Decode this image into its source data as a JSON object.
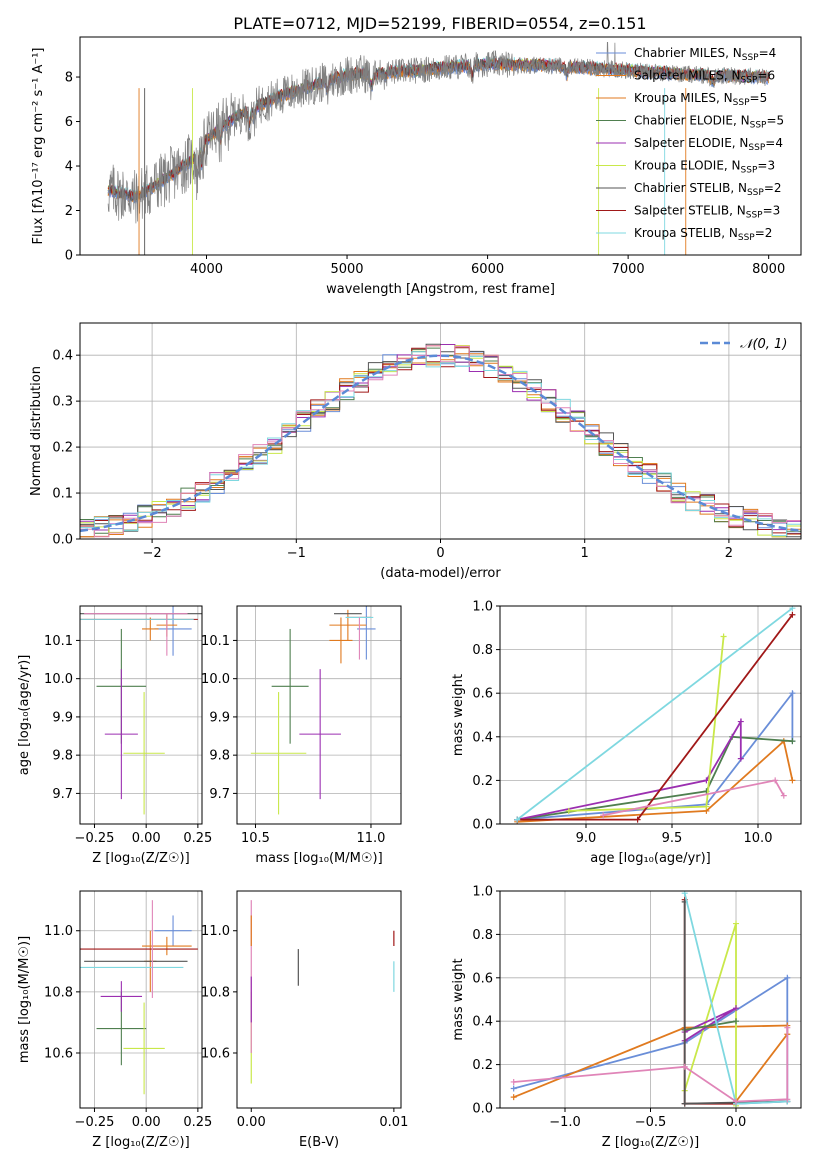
{
  "figure": {
    "title": "PLATE=0712, MJD=52199, FIBERID=0554, z=0.151"
  },
  "colors": {
    "Chabrier MILES": "#6a8ed8",
    "Salpeter MILES": "#e07a1f",
    "Kroupa MILES": "#e07a1f",
    "Chabrier ELODIE": "#4f7f4f",
    "Salpeter ELODIE": "#9b2fb0",
    "Kroupa ELODIE": "#c9e84a",
    "Chabrier STELIB": "#555555",
    "Salpeter STELIB": "#a01818",
    "Kroupa STELIB": "#7fd8e0",
    "pink": "#e085b8",
    "gray_obs": "#808080",
    "grid": "#b0b0b0"
  },
  "chart_data": [
    {
      "id": "spectrum",
      "type": "line",
      "xlabel": "wavelength [Angstrom, rest frame]",
      "ylabel": "Flux [fλ10⁻¹⁷ erg cm⁻² s⁻¹ A⁻¹]",
      "xlim": [
        3100,
        8230
      ],
      "ylim": [
        0,
        9.8
      ],
      "xticks": [
        "4000",
        "5000",
        "6000",
        "7000",
        "8000"
      ],
      "yticks": [
        "0",
        "2",
        "4",
        "6",
        "8"
      ],
      "continuum_x": [
        3300,
        3500,
        3700,
        3900,
        4000,
        4200,
        4500,
        4800,
        5000,
        5500,
        6000,
        6500,
        7000,
        7500,
        8000
      ],
      "continuum_y": [
        2.9,
        2.6,
        3.4,
        4.3,
        5.2,
        6.2,
        7.1,
        7.7,
        8.1,
        8.3,
        8.6,
        8.5,
        8.3,
        8.1,
        8.0
      ],
      "legend": [
        {
          "label": "Chabrier MILES, N",
          "sub": "SSP",
          "tail": "=4"
        },
        {
          "label": "Salpeter MILES, N",
          "sub": "SSP",
          "tail": "=6"
        },
        {
          "label": "Kroupa MILES, N",
          "sub": "SSP",
          "tail": "=5"
        },
        {
          "label": "Chabrier ELODIE, N",
          "sub": "SSP",
          "tail": "=5"
        },
        {
          "label": "Salpeter ELODIE, N",
          "sub": "SSP",
          "tail": "=4"
        },
        {
          "label": "Kroupa ELODIE, N",
          "sub": "SSP",
          "tail": "=3"
        },
        {
          "label": "Chabrier STELIB, N",
          "sub": "SSP",
          "tail": "=2"
        },
        {
          "label": "Salpeter STELIB, N",
          "sub": "SSP",
          "tail": "=3"
        },
        {
          "label": "Kroupa STELIB, N",
          "sub": "SSP",
          "tail": "=2"
        }
      ]
    },
    {
      "id": "residuals",
      "type": "area",
      "xlabel": "(data-model)/error",
      "ylabel": "Normed distribution",
      "xlim": [
        -2.5,
        2.5
      ],
      "ylim": [
        0,
        0.47
      ],
      "xticks": [
        "−2",
        "−1",
        "0",
        "1",
        "2"
      ],
      "yticks": [
        "0.0",
        "0.1",
        "0.2",
        "0.3",
        "0.4"
      ],
      "legend": [
        "𝒩(0, 1)"
      ],
      "grid": true
    },
    {
      "id": "age_vs_Z",
      "type": "scatter",
      "xlabel": "Z [log₁₀(Z/Z☉)]",
      "ylabel": "age  [log₁₀(age/yr)]",
      "xlim": [
        -0.32,
        0.27
      ],
      "ylim": [
        9.62,
        10.19
      ],
      "xticks": [
        "−0.25",
        "0.00",
        "0.25"
      ],
      "yticks": [
        "9.7",
        "9.8",
        "9.9",
        "10.0",
        "10.1"
      ],
      "grid": true,
      "points": [
        {
          "model": "Chabrier MILES",
          "x": 0.13,
          "y": 10.13
        },
        {
          "model": "Salpeter MILES",
          "x": 0.1,
          "y": 10.14
        },
        {
          "model": "Kroupa MILES",
          "x": 0.02,
          "y": 10.13
        },
        {
          "model": "Chabrier ELODIE",
          "x": -0.12,
          "y": 9.98
        },
        {
          "model": "Salpeter ELODIE",
          "x": -0.12,
          "y": 9.855
        },
        {
          "model": "Kroupa ELODIE",
          "x": -0.01,
          "y": 9.805
        },
        {
          "model": "Chabrier STELIB",
          "x": -0.03,
          "y": 10.17
        },
        {
          "model": "Salpeter STELIB",
          "x": -0.05,
          "y": 10.155
        },
        {
          "model": "Kroupa STELIB",
          "x": -0.07,
          "y": 10.155
        }
      ]
    },
    {
      "id": "age_vs_mass",
      "type": "scatter",
      "xlabel": "mass [log₁₀(M/M☉)]",
      "ylabel": "",
      "xlim": [
        10.42,
        11.13
      ],
      "ylim": [
        9.62,
        10.19
      ],
      "xticks": [
        "10.5",
        "11.0"
      ],
      "yticks": [
        "9.7",
        "9.8",
        "9.9",
        "10.0",
        "10.1"
      ],
      "grid": true
    },
    {
      "id": "weight_vs_age",
      "type": "line",
      "xlabel": "age  [log₁₀(age/yr)]",
      "ylabel": "mass weight",
      "xlim": [
        8.5,
        10.25
      ],
      "ylim": [
        0,
        1.0
      ],
      "xticks": [
        "9.0",
        "9.5",
        "10.0"
      ],
      "yticks": [
        "0.0",
        "0.2",
        "0.4",
        "0.6",
        "0.8",
        "1.0"
      ],
      "grid": true
    },
    {
      "id": "mass_vs_Z",
      "type": "scatter",
      "xlabel": "Z [log₁₀(Z/Z☉)]",
      "ylabel": "mass [log₁₀(M/M☉)]",
      "xlim": [
        -0.32,
        0.27
      ],
      "ylim": [
        10.42,
        11.13
      ],
      "xticks": [
        "−0.25",
        "0.00",
        "0.25"
      ],
      "yticks": [
        "10.6",
        "10.8",
        "11.0"
      ],
      "grid": true
    },
    {
      "id": "mass_vs_ebv",
      "type": "scatter",
      "xlabel": "E(B-V)",
      "ylabel": "",
      "xlim": [
        -0.001,
        0.0105
      ],
      "ylim": [
        10.42,
        11.13
      ],
      "xticks": [
        "0.00",
        "0.01"
      ],
      "yticks": [
        "10.6",
        "10.8",
        "11.0"
      ],
      "grid": false
    },
    {
      "id": "weight_vs_Z",
      "type": "line",
      "xlabel": "Z [log₁₀(Z/Z☉)]",
      "ylabel": "mass weight",
      "xlim": [
        -1.38,
        0.38
      ],
      "ylim": [
        0,
        1.0
      ],
      "xticks": [
        "−1.0",
        "−0.5",
        "0.0"
      ],
      "yticks": [
        "0.0",
        "0.2",
        "0.4",
        "0.6",
        "0.8",
        "1.0"
      ],
      "grid": true
    }
  ]
}
